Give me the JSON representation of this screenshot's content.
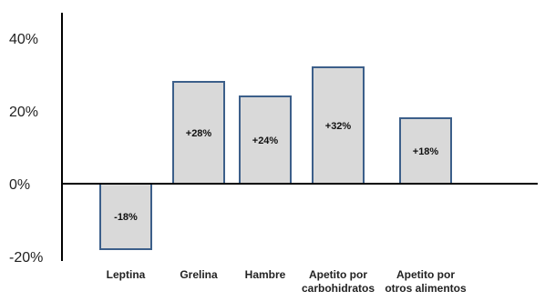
{
  "chart_data": {
    "type": "bar",
    "categories": [
      [
        "Leptina"
      ],
      [
        "Grelina"
      ],
      [
        "Hambre"
      ],
      [
        "Apetito por",
        "carbohidratos"
      ],
      [
        "Apetito por",
        "otros alimentos"
      ]
    ],
    "values": [
      -18,
      28,
      24,
      32,
      18
    ],
    "value_labels": [
      "-18%",
      "+28%",
      "+24%",
      "+32%",
      "+18%"
    ],
    "ytick_labels": [
      "40%",
      "20%",
      "0%",
      "-20%"
    ],
    "ytick_values": [
      40,
      20,
      0,
      -20
    ],
    "ylim": [
      -20,
      40
    ],
    "title": "",
    "xlabel": "",
    "ylabel": "",
    "grid": false,
    "colors": {
      "bar_fill": "#d9d9d9",
      "bar_stroke": "#3c5f8a",
      "axis": "#000000"
    }
  }
}
